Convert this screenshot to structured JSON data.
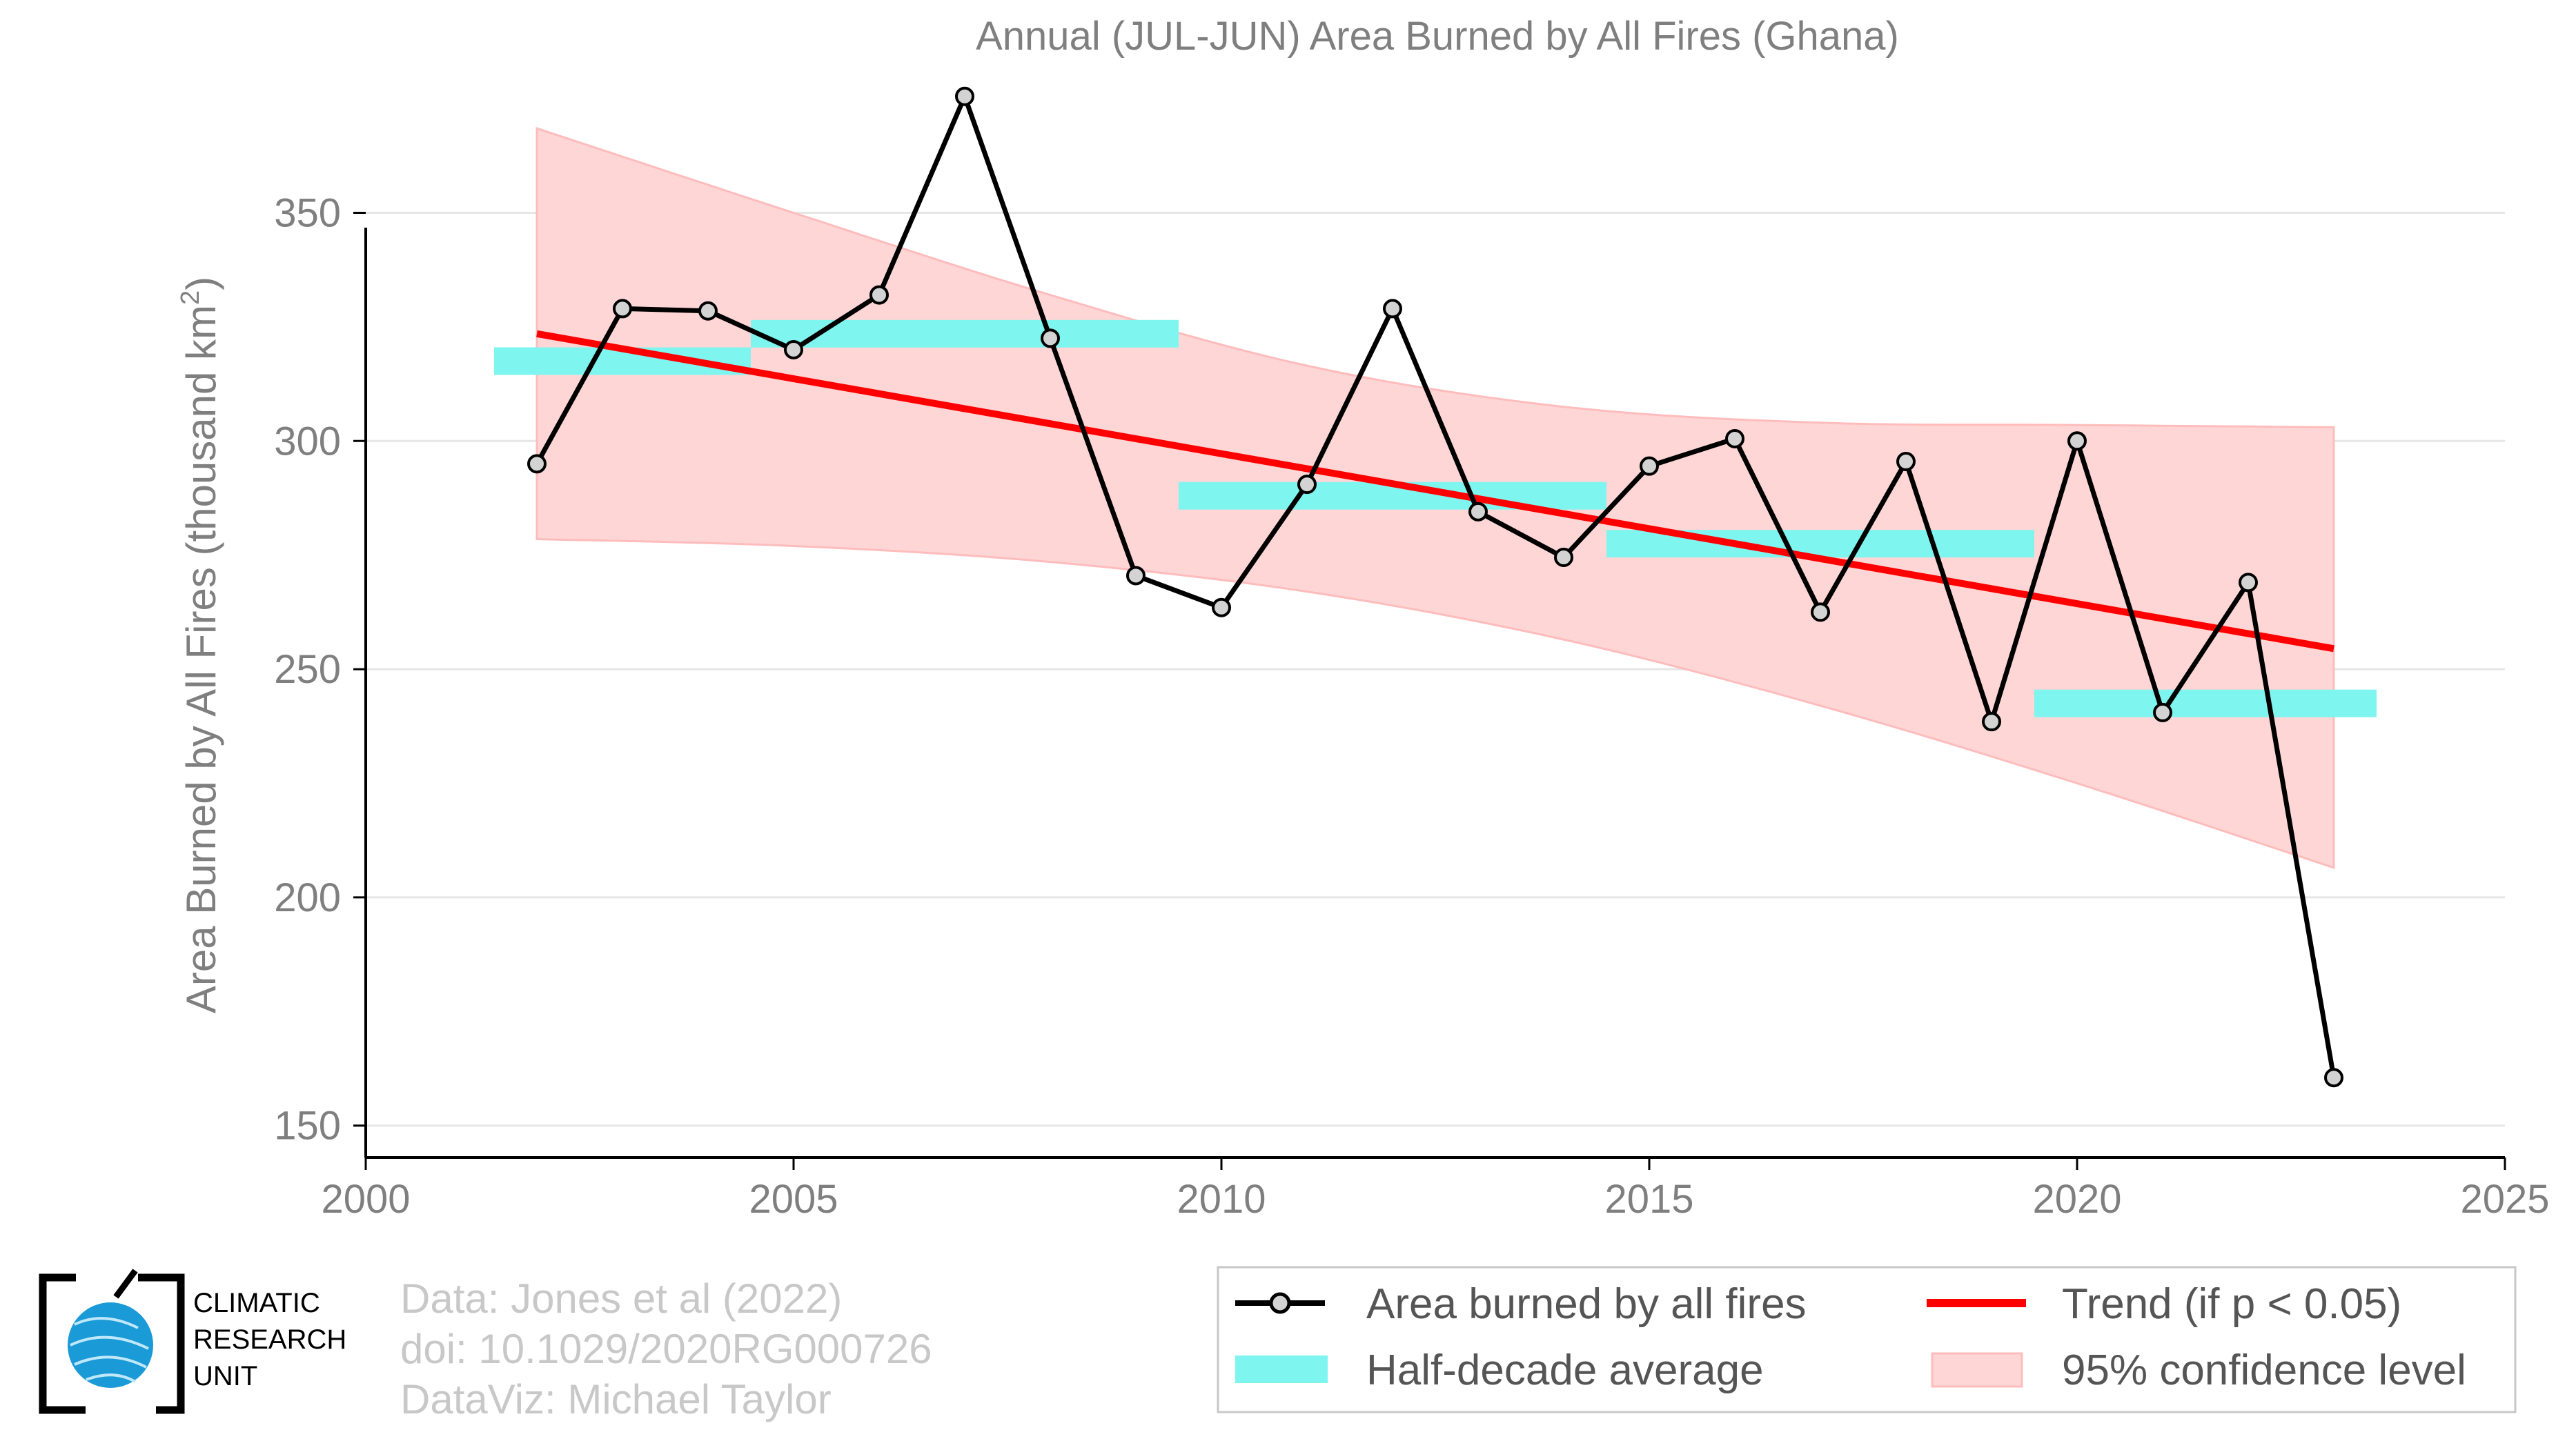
{
  "chart_data": {
    "type": "line",
    "title": "Annual (JUL-JUN) Area Burned by All Fires (Ghana)",
    "ylabel": "Area Burned by All Fires (thousand km²)",
    "ylabel_main": "Area Burned by All Fires (thousand km",
    "ylabel_sup": "2",
    "ylabel_end": ")",
    "xlabel": "",
    "xlim": [
      2000,
      2025
    ],
    "ylim": [
      143,
      380
    ],
    "xticks": [
      2000,
      2005,
      2010,
      2015,
      2020,
      2025
    ],
    "yticks": [
      150,
      200,
      250,
      300,
      350
    ],
    "grid": true,
    "series": [
      {
        "name": "Area burned by all fires",
        "color": "#000000",
        "marker_fill": "#d3d3d3",
        "x": [
          2002,
          2003,
          2004,
          2005,
          2006,
          2007,
          2008,
          2009,
          2010,
          2011,
          2012,
          2013,
          2014,
          2015,
          2016,
          2017,
          2018,
          2019,
          2020,
          2021,
          2022,
          2023
        ],
        "y": [
          295,
          329,
          328.5,
          320,
          332,
          375.5,
          322.5,
          270.5,
          263.5,
          290.5,
          329,
          284.5,
          274.5,
          294.5,
          300.5,
          262.5,
          295.5,
          238.5,
          300,
          240.5,
          269,
          160.5
        ]
      }
    ],
    "half_decade_average": {
      "name": "Half-decade average",
      "color": "#7ff5f0",
      "segments": [
        {
          "x_start": 2001.5,
          "x_end": 2004.5,
          "y": 317.5
        },
        {
          "x_start": 2004.5,
          "x_end": 2009.5,
          "y": 323.5
        },
        {
          "x_start": 2009.5,
          "x_end": 2014.5,
          "y": 288
        },
        {
          "x_start": 2014.5,
          "x_end": 2019.5,
          "y": 277.5
        },
        {
          "x_start": 2019.5,
          "x_end": 2023.5,
          "y": 242.5
        }
      ]
    },
    "trend": {
      "name": "Trend (if p < 0.05)",
      "color": "#ff0000",
      "x": [
        2002,
        2023
      ],
      "y": [
        323.5,
        254.5
      ]
    },
    "confidence_band": {
      "name": "95% confidence level",
      "fill": "#ffd6d6",
      "stroke": "#ffbcbc",
      "x": [
        2002,
        2005,
        2008,
        2011,
        2014,
        2017,
        2020,
        2023
      ],
      "upper": [
        368.5,
        350,
        332,
        316.5,
        307.5,
        304,
        303.5,
        303
      ],
      "lower": [
        278.5,
        277,
        273.5,
        267,
        256.5,
        242,
        225,
        206.5
      ]
    }
  },
  "legend": {
    "items": [
      "Area burned by all fires",
      "Trend (if p < 0.05)",
      "Half-decade average",
      "95% confidence level"
    ]
  },
  "credits": {
    "line1": "Data: Jones et al (2022)",
    "line2": "doi: 10.1029/2020RG000726",
    "line3": "DataViz: Michael Taylor"
  },
  "logo": {
    "line1": "CLIMATIC",
    "line2": "RESEARCH",
    "line3": "UNIT"
  },
  "colors": {
    "axis": "#000000",
    "text": "#7f7f7f",
    "grid": "#e6e6e6",
    "globe": "#1a9ad6"
  }
}
